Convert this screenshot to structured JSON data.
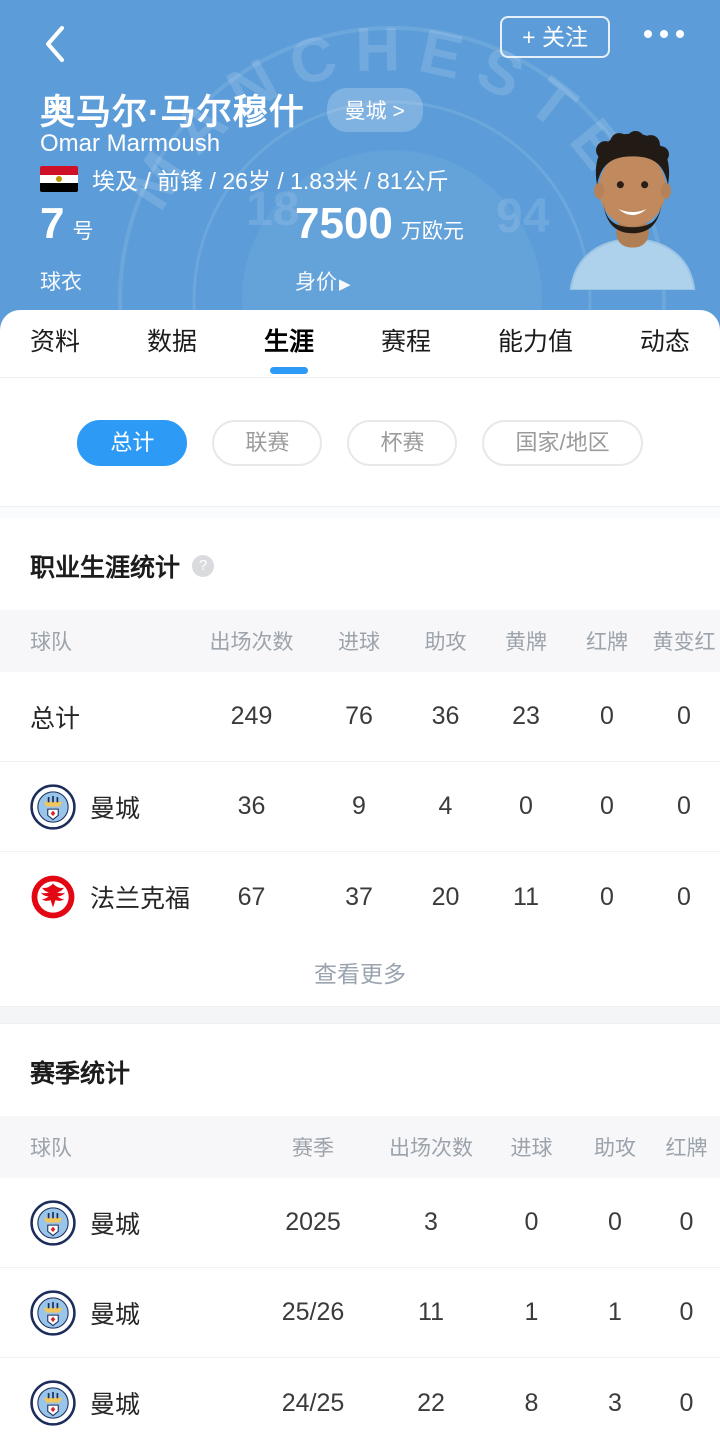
{
  "colors": {
    "header_bg": "#5C9DD9",
    "accent": "#2D9BF5",
    "frankfurt_red": "#E30613",
    "mancity_navy": "#1C2C5B",
    "mancity_sky": "#98C5E9"
  },
  "header": {
    "back_icon": "chevron-left",
    "follow_label": "+ 关注",
    "more_icon": "ellipsis",
    "watermark_text": "MANCHESTER",
    "watermark_left_num": "18",
    "watermark_right_num": "94",
    "name_cn": "奥马尔·马尔穆什",
    "team_badge": "曼城 >",
    "name_en": "Omar Marmoush",
    "nationality_flag": "egypt-flag",
    "info_line": "埃及 / 前锋 / 26岁 / 1.83米 / 81公斤",
    "jersey_number": "7",
    "jersey_unit": "号",
    "jersey_label": "球衣",
    "value_number": "7500",
    "value_unit": "万欧元",
    "value_label": "身价",
    "value_arrow": "▶"
  },
  "tabs": [
    {
      "key": "profile",
      "label": "资料",
      "active": false
    },
    {
      "key": "data",
      "label": "数据",
      "active": false
    },
    {
      "key": "career",
      "label": "生涯",
      "active": true
    },
    {
      "key": "schedule",
      "label": "赛程",
      "active": false
    },
    {
      "key": "ability",
      "label": "能力值",
      "active": false
    },
    {
      "key": "feed",
      "label": "动态",
      "active": false
    }
  ],
  "filters": [
    {
      "key": "total",
      "label": "总计",
      "active": true
    },
    {
      "key": "league",
      "label": "联赛",
      "active": false
    },
    {
      "key": "cup",
      "label": "杯赛",
      "active": false
    },
    {
      "key": "national",
      "label": "国家/地区",
      "active": false
    }
  ],
  "career": {
    "title": "职业生涯统计",
    "help_icon": "?",
    "columns": [
      "球队",
      "出场次数",
      "进球",
      "助攻",
      "黄牌",
      "红牌",
      "黄变红"
    ],
    "rows": [
      {
        "team": "总计",
        "logo": null,
        "values": [
          "249",
          "76",
          "36",
          "23",
          "0",
          "0"
        ]
      },
      {
        "team": "曼城",
        "logo": "man-city",
        "values": [
          "36",
          "9",
          "4",
          "0",
          "0",
          "0"
        ]
      },
      {
        "team": "法兰克福",
        "logo": "frankfurt",
        "values": [
          "67",
          "37",
          "20",
          "11",
          "0",
          "0"
        ]
      }
    ],
    "more_label": "查看更多"
  },
  "season": {
    "title": "赛季统计",
    "columns": [
      "球队",
      "赛季",
      "出场次数",
      "进球",
      "助攻",
      "红牌"
    ],
    "rows": [
      {
        "team": "曼城",
        "logo": "man-city",
        "values": [
          "2025",
          "3",
          "0",
          "0",
          "0"
        ]
      },
      {
        "team": "曼城",
        "logo": "man-city",
        "values": [
          "25/26",
          "11",
          "1",
          "1",
          "0"
        ]
      },
      {
        "team": "曼城",
        "logo": "man-city",
        "values": [
          "24/25",
          "22",
          "8",
          "3",
          "0"
        ]
      }
    ]
  }
}
